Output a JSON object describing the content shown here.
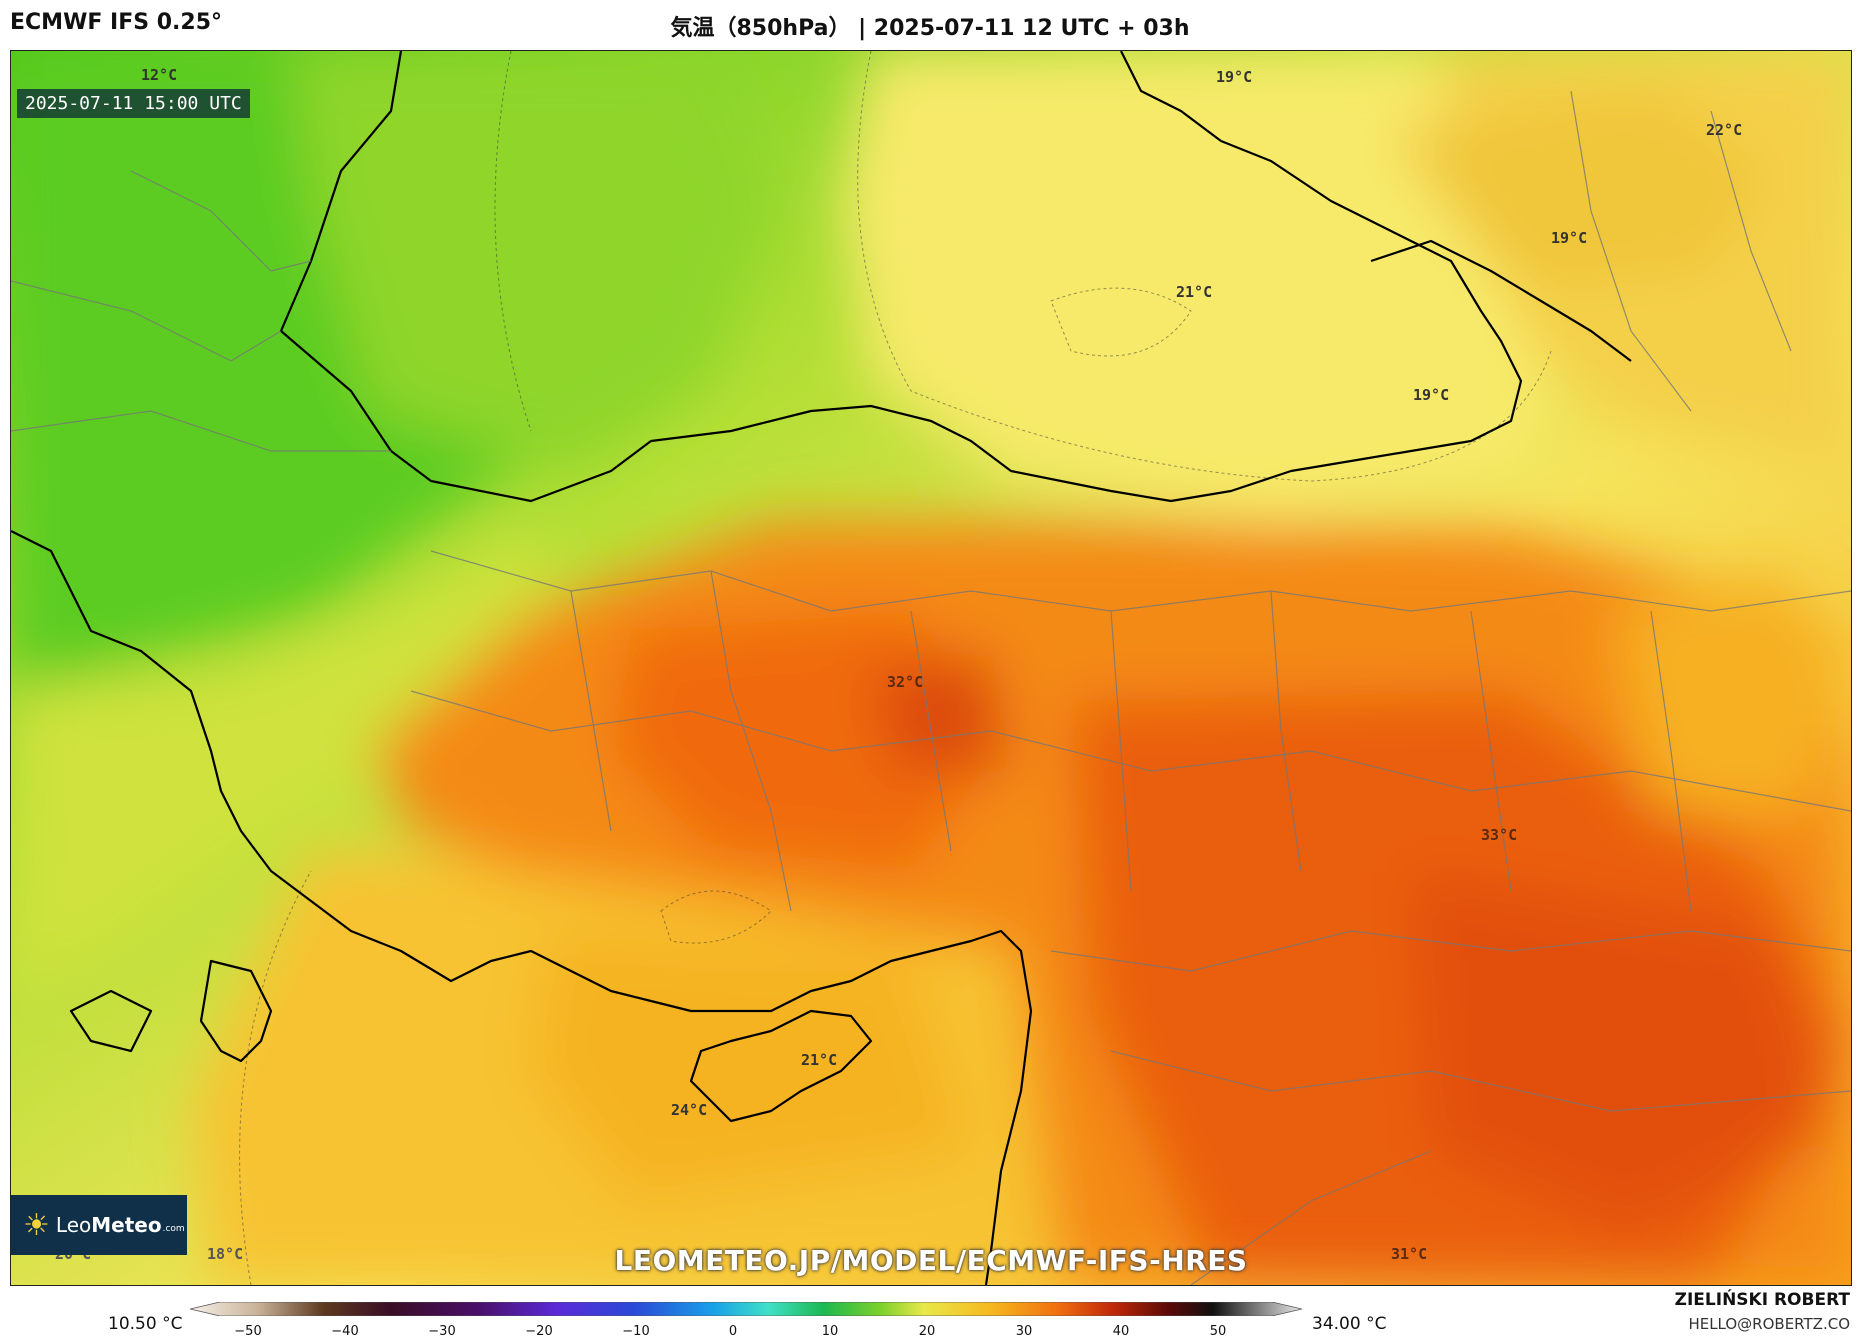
{
  "header": {
    "model": "ECMWF IFS 0.25°",
    "title": "気温（850hPa） | 2025-07-11 12 UTC + 03h"
  },
  "map": {
    "timestamp": "2025-07-11 15:00 UTC",
    "labels": {
      "l1": "12°C",
      "l2": "19°C",
      "l3": "22°C",
      "l4": "21°C",
      "l5": "19°C",
      "l6": "19°C",
      "l7": "32°C",
      "l8": "33°C",
      "l9": "21°C",
      "l10": "24°C",
      "l11": "20°C",
      "l12": "18°C",
      "l13": "31°C"
    },
    "watermark": "LEOMETEO.JP/MODEL/ECMWF-IFS-HRES",
    "logo": {
      "leo": "Leo",
      "meteo": "Meteo",
      "com": ".com"
    }
  },
  "legend": {
    "min_label": "10.50 °C",
    "max_label": "34.00 °C",
    "ticks": [
      "−50",
      "−40",
      "−30",
      "−20",
      "−10",
      "0",
      "10",
      "20",
      "30",
      "40",
      "50"
    ]
  },
  "footer": {
    "author": "ZIELIŃSKI ROBERT",
    "email": "HELLO@ROBERTZ.CO"
  },
  "colors": {
    "cool": "#5cc51e",
    "mild": "#c8e33a",
    "warm_yellow": "#f7e35a",
    "amber": "#f6b81f",
    "orange": "#f37a10",
    "hot": "#e24f08"
  }
}
